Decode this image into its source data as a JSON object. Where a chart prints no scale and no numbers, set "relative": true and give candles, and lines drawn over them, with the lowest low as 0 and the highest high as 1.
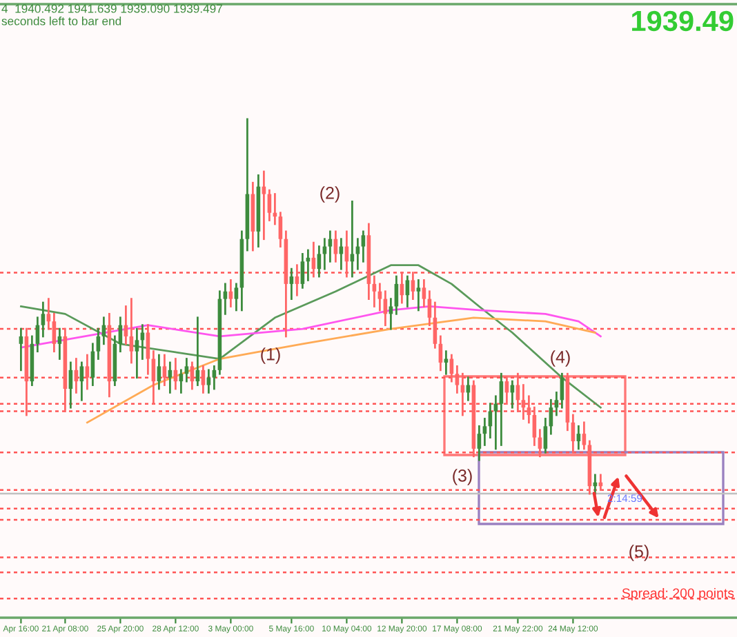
{
  "chart_data": {
    "type": "candlestick",
    "relative": true,
    "categories": [
      "Apr 16:00",
      null,
      null,
      null,
      null,
      null,
      null,
      null,
      "21 Apr 08:00",
      null,
      null,
      null,
      null,
      null,
      null,
      null,
      null,
      null,
      "25 Apr 20:00",
      null,
      null,
      null,
      null,
      null,
      null,
      null,
      null,
      null,
      "28 Apr 12:00",
      null,
      null,
      null,
      null,
      null,
      null,
      null,
      null,
      null,
      "3 May 00:00",
      null,
      null,
      null,
      null,
      null,
      null,
      null,
      null,
      null,
      null,
      "5 May 16:00",
      null,
      null,
      null,
      null,
      null,
      null,
      null,
      null,
      null,
      "10 May 04:00",
      null,
      null,
      null,
      null,
      null,
      null,
      null,
      null,
      null,
      "12 May 20:00",
      null,
      null,
      null,
      null,
      null,
      null,
      null,
      null,
      null,
      "17 May 08:00",
      null,
      null,
      null,
      null,
      null,
      null,
      null,
      null,
      null,
      null,
      "21 May 22:00",
      null,
      null,
      null,
      null,
      null,
      null,
      null,
      null,
      null,
      "24 May 12:00",
      null,
      null,
      null,
      null,
      null
    ],
    "ohlc": [
      [
        0.4,
        0.44,
        0.33,
        0.42
      ],
      [
        0.42,
        0.44,
        0.21,
        0.3
      ],
      [
        0.3,
        0.42,
        0.29,
        0.4
      ],
      [
        0.4,
        0.47,
        0.38,
        0.45
      ],
      [
        0.45,
        0.51,
        0.42,
        0.48
      ],
      [
        0.48,
        0.52,
        0.44,
        0.46
      ],
      [
        0.46,
        0.48,
        0.38,
        0.4
      ],
      [
        0.4,
        0.44,
        0.36,
        0.42
      ],
      [
        0.42,
        0.44,
        0.22,
        0.28
      ],
      [
        0.28,
        0.35,
        0.23,
        0.33
      ],
      [
        0.33,
        0.36,
        0.27,
        0.3
      ],
      [
        0.3,
        0.35,
        0.25,
        0.34
      ],
      [
        0.34,
        0.37,
        0.28,
        0.31
      ],
      [
        0.31,
        0.4,
        0.29,
        0.38
      ],
      [
        0.38,
        0.44,
        0.36,
        0.42
      ],
      [
        0.42,
        0.47,
        0.4,
        0.45
      ],
      [
        0.45,
        0.48,
        0.26,
        0.3
      ],
      [
        0.3,
        0.42,
        0.29,
        0.4
      ],
      [
        0.4,
        0.47,
        0.38,
        0.45
      ],
      [
        0.45,
        0.5,
        0.4,
        0.42
      ],
      [
        0.42,
        0.52,
        0.35,
        0.38
      ],
      [
        0.38,
        0.44,
        0.31,
        0.41
      ],
      [
        0.41,
        0.45,
        0.36,
        0.43
      ],
      [
        0.43,
        0.45,
        0.32,
        0.36
      ],
      [
        0.36,
        0.38,
        0.24,
        0.3
      ],
      [
        0.3,
        0.37,
        0.28,
        0.34
      ],
      [
        0.34,
        0.37,
        0.29,
        0.31
      ],
      [
        0.31,
        0.35,
        0.27,
        0.33
      ],
      [
        0.33,
        0.36,
        0.28,
        0.3
      ],
      [
        0.3,
        0.33,
        0.27,
        0.32
      ],
      [
        0.32,
        0.36,
        0.3,
        0.34
      ],
      [
        0.34,
        0.35,
        0.28,
        0.3
      ],
      [
        0.3,
        0.47,
        0.29,
        0.33
      ],
      [
        0.33,
        0.34,
        0.27,
        0.29
      ],
      [
        0.29,
        0.33,
        0.27,
        0.31
      ],
      [
        0.31,
        0.34,
        0.28,
        0.33
      ],
      [
        0.33,
        0.54,
        0.32,
        0.52
      ],
      [
        0.52,
        0.56,
        0.48,
        0.54
      ],
      [
        0.54,
        0.57,
        0.5,
        0.52
      ],
      [
        0.52,
        0.56,
        0.49,
        0.55
      ],
      [
        0.55,
        0.7,
        0.49,
        0.68
      ],
      [
        0.68,
        1.0,
        0.65,
        0.8
      ],
      [
        0.8,
        0.83,
        0.65,
        0.7
      ],
      [
        0.7,
        0.85,
        0.66,
        0.82
      ],
      [
        0.82,
        0.86,
        0.68,
        0.8
      ],
      [
        0.8,
        0.81,
        0.73,
        0.75
      ],
      [
        0.75,
        0.8,
        0.72,
        0.74
      ],
      [
        0.74,
        0.75,
        0.66,
        0.68
      ],
      [
        0.68,
        0.7,
        0.42,
        0.56
      ],
      [
        0.56,
        0.6,
        0.52,
        0.58
      ],
      [
        0.58,
        0.61,
        0.53,
        0.56
      ],
      [
        0.56,
        0.64,
        0.55,
        0.62
      ],
      [
        0.62,
        0.65,
        0.57,
        0.63
      ],
      [
        0.63,
        0.67,
        0.58,
        0.6
      ],
      [
        0.6,
        0.66,
        0.58,
        0.64
      ],
      [
        0.64,
        0.68,
        0.6,
        0.66
      ],
      [
        0.66,
        0.7,
        0.62,
        0.68
      ],
      [
        0.68,
        0.7,
        0.62,
        0.64
      ],
      [
        0.64,
        0.68,
        0.6,
        0.66
      ],
      [
        0.66,
        0.7,
        0.58,
        0.62
      ],
      [
        0.62,
        0.78,
        0.58,
        0.64
      ],
      [
        0.64,
        0.68,
        0.6,
        0.66
      ],
      [
        0.66,
        0.7,
        0.62,
        0.69
      ],
      [
        0.69,
        0.72,
        0.52,
        0.56
      ],
      [
        0.56,
        0.58,
        0.5,
        0.54
      ],
      [
        0.54,
        0.56,
        0.49,
        0.52
      ],
      [
        0.52,
        0.54,
        0.45,
        0.48
      ],
      [
        0.48,
        0.52,
        0.44,
        0.5
      ],
      [
        0.5,
        0.58,
        0.48,
        0.56
      ],
      [
        0.56,
        0.59,
        0.51,
        0.53
      ],
      [
        0.53,
        0.58,
        0.5,
        0.57
      ],
      [
        0.57,
        0.59,
        0.52,
        0.54
      ],
      [
        0.54,
        0.57,
        0.49,
        0.55
      ],
      [
        0.55,
        0.57,
        0.5,
        0.52
      ],
      [
        0.52,
        0.54,
        0.45,
        0.47
      ],
      [
        0.47,
        0.51,
        0.39,
        0.4
      ],
      [
        0.4,
        0.42,
        0.33,
        0.35
      ],
      [
        0.35,
        0.38,
        0.32,
        0.36
      ],
      [
        0.36,
        0.37,
        0.3,
        0.32
      ],
      [
        0.32,
        0.34,
        0.27,
        0.29
      ],
      [
        0.29,
        0.32,
        0.21,
        0.27
      ],
      [
        0.27,
        0.31,
        0.25,
        0.29
      ],
      [
        0.29,
        0.3,
        0.1,
        0.12
      ],
      [
        0.12,
        0.18,
        0.09,
        0.16
      ],
      [
        0.16,
        0.2,
        0.13,
        0.18
      ],
      [
        0.18,
        0.24,
        0.15,
        0.22
      ],
      [
        0.22,
        0.26,
        0.12,
        0.24
      ],
      [
        0.24,
        0.32,
        0.13,
        0.3
      ],
      [
        0.3,
        0.31,
        0.24,
        0.27
      ],
      [
        0.27,
        0.3,
        0.23,
        0.29
      ],
      [
        0.29,
        0.32,
        0.22,
        0.25
      ],
      [
        0.25,
        0.29,
        0.2,
        0.23
      ],
      [
        0.23,
        0.26,
        0.19,
        0.21
      ],
      [
        0.21,
        0.23,
        0.13,
        0.15
      ],
      [
        0.15,
        0.17,
        0.1,
        0.12
      ],
      [
        0.12,
        0.2,
        0.11,
        0.18
      ],
      [
        0.18,
        0.25,
        0.16,
        0.23
      ],
      [
        0.23,
        0.27,
        0.21,
        0.25
      ],
      [
        0.25,
        0.32,
        0.23,
        0.31
      ],
      [
        0.31,
        0.32,
        0.17,
        0.19
      ],
      [
        0.19,
        0.21,
        0.11,
        0.14
      ],
      [
        0.14,
        0.18,
        0.12,
        0.16
      ],
      [
        0.16,
        0.19,
        0.12,
        0.13
      ],
      [
        0.13,
        0.14,
        0.0,
        0.02
      ],
      [
        0.02,
        0.05,
        0.0,
        0.03
      ],
      [
        0.03,
        0.05,
        0.01,
        0.02
      ]
    ],
    "colors": [
      "#3d8b3d",
      "#ff6666",
      "#3d8b3d",
      "#3d8b3d",
      "#3d8b3d",
      "#ff6666",
      "#ff6666",
      "#3d8b3d",
      "#ff6666",
      "#3d8b3d",
      "#ff6666",
      "#3d8b3d",
      "#ff6666",
      "#3d8b3d",
      "#3d8b3d",
      "#3d8b3d",
      "#ff6666",
      "#3d8b3d",
      "#3d8b3d",
      "#ff6666",
      "#ff6666",
      "#3d8b3d",
      "#3d8b3d",
      "#ff6666",
      "#ff6666",
      "#3d8b3d",
      "#ff6666",
      "#3d8b3d",
      "#ff6666",
      "#3d8b3d",
      "#3d8b3d",
      "#ff6666",
      "#3d8b3d",
      "#ff6666",
      "#3d8b3d",
      "#3d8b3d",
      "#3d8b3d",
      "#3d8b3d",
      "#ff6666",
      "#3d8b3d",
      "#3d8b3d",
      "#3d8b3d",
      "#ff6666",
      "#3d8b3d",
      "#ff6666",
      "#ff6666",
      "#ff6666",
      "#ff6666",
      "#ff6666",
      "#3d8b3d",
      "#ff6666",
      "#3d8b3d",
      "#3d8b3d",
      "#ff6666",
      "#3d8b3d",
      "#3d8b3d",
      "#3d8b3d",
      "#ff6666",
      "#3d8b3d",
      "#ff6666",
      "#3d8b3d",
      "#3d8b3d",
      "#3d8b3d",
      "#ff6666",
      "#ff6666",
      "#ff6666",
      "#ff6666",
      "#3d8b3d",
      "#3d8b3d",
      "#ff6666",
      "#3d8b3d",
      "#ff6666",
      "#3d8b3d",
      "#ff6666",
      "#ff6666",
      "#ff6666",
      "#ff6666",
      "#3d8b3d",
      "#ff6666",
      "#ff6666",
      "#ff6666",
      "#3d8b3d",
      "#ff6666",
      "#3d8b3d",
      "#3d8b3d",
      "#3d8b3d",
      "#3d8b3d",
      "#3d8b3d",
      "#ff6666",
      "#3d8b3d",
      "#ff6666",
      "#ff6666",
      "#ff6666",
      "#ff6666",
      "#ff6666",
      "#3d8b3d",
      "#3d8b3d",
      "#3d8b3d",
      "#3d8b3d",
      "#ff6666",
      "#ff6666",
      "#3d8b3d",
      "#ff6666",
      "#ff6666",
      "#3d8b3d",
      "#ff6666"
    ],
    "series": [
      {
        "type": "line",
        "color": "#5a9a5a",
        "values": [
          0.5,
          null,
          null,
          null,
          null,
          null,
          null,
          null,
          0.48,
          null,
          null,
          null,
          null,
          null,
          null,
          null,
          null,
          null,
          0.4,
          null,
          null,
          null,
          null,
          null,
          null,
          null,
          null,
          null,
          null,
          null,
          null,
          null,
          null,
          null,
          null,
          null,
          0.36,
          null,
          null,
          null,
          null,
          null,
          null,
          null,
          null,
          null,
          0.47,
          null,
          null,
          null,
          null,
          null,
          null,
          null,
          null,
          null,
          null,
          0.54,
          null,
          null,
          null,
          null,
          null,
          null,
          null,
          null,
          null,
          0.61,
          null,
          null,
          null,
          null,
          0.61,
          null,
          null,
          null,
          null,
          null,
          0.56,
          null,
          null,
          null,
          null,
          0.5,
          null,
          null,
          null,
          null,
          null,
          0.43,
          null,
          null,
          null,
          null,
          null,
          null,
          null,
          null,
          0.31,
          null,
          null,
          null,
          null,
          null,
          null,
          0.23
        ]
      },
      {
        "type": "line",
        "color": "#ff55ee",
        "values": [
          0.39,
          null,
          null,
          null,
          null,
          null,
          null,
          null,
          null,
          null,
          null,
          null,
          null,
          null,
          null,
          null,
          null,
          null,
          null,
          null,
          null,
          null,
          null,
          0.45,
          null,
          null,
          null,
          null,
          null,
          null,
          null,
          null,
          null,
          null,
          null,
          null,
          0.42,
          null,
          null,
          null,
          null,
          null,
          null,
          null,
          null,
          null,
          null,
          null,
          null,
          null,
          null,
          0.44,
          null,
          null,
          null,
          null,
          null,
          null,
          null,
          null,
          null,
          null,
          null,
          null,
          null,
          null,
          null,
          0.49,
          null,
          null,
          null,
          null,
          null,
          null,
          0.5,
          null,
          null,
          null,
          null,
          null,
          null,
          null,
          null,
          0.49,
          null,
          null,
          null,
          null,
          null,
          null,
          null,
          null,
          null,
          null,
          null,
          0.48,
          null,
          null,
          null,
          null,
          null,
          0.46,
          null,
          null,
          null,
          0.42
        ]
      },
      {
        "type": "line",
        "color": "#ffaa55",
        "values": [
          null,
          null,
          null,
          null,
          null,
          null,
          null,
          null,
          null,
          null,
          null,
          null,
          0.19,
          null,
          null,
          null,
          null,
          null,
          null,
          null,
          null,
          null,
          null,
          null,
          0.29,
          null,
          null,
          null,
          null,
          null,
          null,
          null,
          null,
          null,
          null,
          null,
          0.36,
          null,
          null,
          null,
          null,
          null,
          null,
          null,
          null,
          null,
          null,
          null,
          null,
          null,
          null,
          0.4,
          null,
          null,
          null,
          null,
          null,
          null,
          null,
          null,
          null,
          null,
          null,
          null,
          null,
          null,
          null,
          0.44,
          null,
          null,
          null,
          null,
          null,
          null,
          null,
          null,
          null,
          null,
          null,
          null,
          null,
          null,
          0.47,
          null,
          null,
          null,
          null,
          null,
          null,
          null,
          null,
          null,
          null,
          null,
          null,
          0.46,
          null,
          null,
          null,
          null,
          null,
          null,
          null,
          null,
          0.43,
          null
        ]
      }
    ],
    "ref_lines": [
      {
        "axis": "y",
        "value": 0.59,
        "color": "#ff5555",
        "line_style": "dotted"
      },
      {
        "axis": "y",
        "value": 0.44,
        "color": "#ff5555",
        "line_style": "dotted"
      },
      {
        "axis": "y",
        "value": 0.31,
        "color": "#ff5555",
        "line_style": "dotted"
      },
      {
        "axis": "y",
        "value": 0.24,
        "color": "#ff5555",
        "line_style": "dotted"
      },
      {
        "axis": "y",
        "value": 0.22,
        "color": "#ff5555",
        "line_style": "dotted"
      },
      {
        "axis": "y",
        "value": 0.11,
        "color": "#ff5555",
        "line_style": "dotted"
      },
      {
        "axis": "y",
        "value": 0.01,
        "color": "#ff5555",
        "line_style": "dotted"
      },
      {
        "axis": "y",
        "value": 0.0,
        "color": "#c0c0c0",
        "line_style": "solid"
      },
      {
        "axis": "y",
        "value": -0.04,
        "color": "#ff5555",
        "line_style": "dotted"
      },
      {
        "axis": "y",
        "value": -0.07,
        "color": "#ff5555",
        "line_style": "dotted"
      },
      {
        "axis": "y",
        "value": -0.17,
        "color": "#ff5555",
        "line_style": "dotted"
      },
      {
        "axis": "y",
        "value": -0.21,
        "color": "#ff5555",
        "line_style": "dotted"
      },
      {
        "axis": "y",
        "value": -0.28,
        "color": "#ff5555",
        "line_style": "dotted"
      }
    ],
    "annotations": [
      "4  1940.492 1941.639 1939.090 1939.497",
      "seconds left to bar end",
      "1939.49",
      "(1)",
      "(2)",
      "(3)",
      "(4)",
      "(5)",
      "2:14:59",
      "Spread: 200 points"
    ]
  }
}
